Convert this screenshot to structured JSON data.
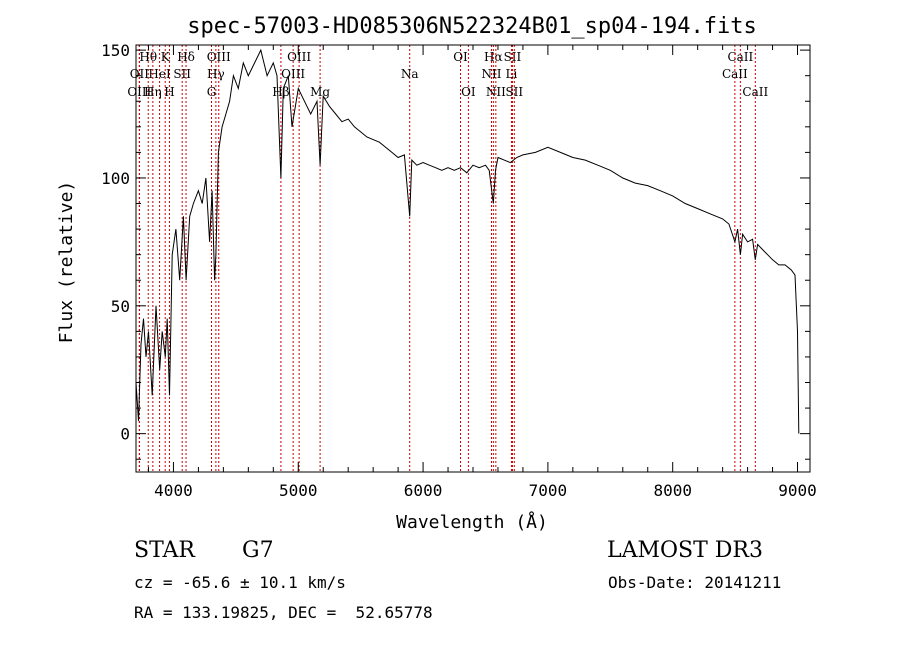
{
  "chart_data": {
    "type": "line",
    "title": "spec-57003-HD085306N522324B01_sp04-194.fits",
    "xlabel": "Wavelength (Å)",
    "ylabel": "Flux (relative)",
    "xlim": [
      3700,
      9100
    ],
    "ylim": [
      -15,
      152
    ],
    "x_ticks": [
      4000,
      5000,
      6000,
      7000,
      8000,
      9000
    ],
    "y_ticks": [
      0,
      50,
      100,
      150
    ],
    "grid": false,
    "series": [
      {
        "name": "spectrum",
        "x": [
          3700,
          3720,
          3740,
          3760,
          3780,
          3800,
          3830,
          3860,
          3890,
          3910,
          3935,
          3950,
          3968,
          3990,
          4020,
          4050,
          4080,
          4101,
          4130,
          4160,
          4200,
          4230,
          4260,
          4290,
          4310,
          4330,
          4340,
          4360,
          4390,
          4420,
          4450,
          4480,
          4520,
          4560,
          4600,
          4650,
          4700,
          4750,
          4800,
          4830,
          4861,
          4880,
          4920,
          4950,
          5000,
          5050,
          5100,
          5150,
          5175,
          5200,
          5250,
          5300,
          5350,
          5400,
          5450,
          5500,
          5550,
          5600,
          5650,
          5700,
          5750,
          5800,
          5850,
          5893,
          5910,
          5950,
          6000,
          6050,
          6100,
          6150,
          6200,
          6250,
          6300,
          6350,
          6400,
          6450,
          6500,
          6530,
          6563,
          6580,
          6600,
          6650,
          6700,
          6750,
          6800,
          6900,
          7000,
          7100,
          7200,
          7300,
          7400,
          7500,
          7600,
          7700,
          7800,
          7900,
          8000,
          8100,
          8200,
          8300,
          8400,
          8450,
          8498,
          8520,
          8542,
          8560,
          8600,
          8640,
          8662,
          8680,
          8720,
          8760,
          8800,
          8850,
          8900,
          8950,
          8980,
          9000,
          9010
        ],
        "values": [
          20,
          5,
          35,
          45,
          30,
          40,
          15,
          50,
          25,
          40,
          30,
          45,
          15,
          70,
          80,
          60,
          85,
          60,
          85,
          90,
          95,
          90,
          100,
          75,
          95,
          60,
          70,
          110,
          120,
          125,
          130,
          140,
          135,
          145,
          140,
          145,
          150,
          140,
          145,
          140,
          100,
          135,
          140,
          120,
          135,
          130,
          125,
          130,
          105,
          132,
          128,
          125,
          122,
          123,
          120,
          118,
          116,
          115,
          114,
          112,
          110,
          108,
          109,
          85,
          107,
          105,
          106,
          105,
          104,
          103,
          104,
          103,
          104,
          102,
          105,
          104,
          105,
          103,
          90,
          103,
          108,
          107,
          106,
          108,
          109,
          110,
          112,
          110,
          108,
          107,
          105,
          103,
          100,
          98,
          97,
          95,
          93,
          90,
          88,
          86,
          84,
          82,
          75,
          80,
          70,
          78,
          75,
          76,
          68,
          74,
          72,
          70,
          68,
          66,
          66,
          64,
          62,
          40,
          0
        ]
      }
    ],
    "line_markers": [
      {
        "label": "Hθ",
        "x": 3798,
        "row": 1
      },
      {
        "label": "OII",
        "x": 3727,
        "row": 2
      },
      {
        "label": "OIII",
        "x": 3727,
        "row": 3
      },
      {
        "label": "K",
        "x": 3934,
        "row": 1
      },
      {
        "label": "Hδ",
        "x": 4101,
        "row": 1
      },
      {
        "label": "HeI",
        "x": 3889,
        "row": 2
      },
      {
        "label": "SII",
        "x": 4070,
        "row": 2
      },
      {
        "label": "Hη",
        "x": 3835,
        "row": 3
      },
      {
        "label": "H",
        "x": 3968,
        "row": 3
      },
      {
        "label": "OIII",
        "x": 4363,
        "row": 1
      },
      {
        "label": "Hγ",
        "x": 4340,
        "row": 2
      },
      {
        "label": "G",
        "x": 4305,
        "row": 3
      },
      {
        "label": "OIII",
        "x": 5007,
        "row": 1
      },
      {
        "label": "OIII",
        "x": 4959,
        "row": 2
      },
      {
        "label": "Hβ",
        "x": 4861,
        "row": 3
      },
      {
        "label": "Mg",
        "x": 5175,
        "row": 3
      },
      {
        "label": "Na",
        "x": 5893,
        "row": 2
      },
      {
        "label": "OI",
        "x": 6300,
        "row": 1
      },
      {
        "label": "OI",
        "x": 6363,
        "row": 3
      },
      {
        "label": "Hα",
        "x": 6563,
        "row": 1
      },
      {
        "label": "SII",
        "x": 6716,
        "row": 1
      },
      {
        "label": "NII",
        "x": 6548,
        "row": 2
      },
      {
        "label": "Li",
        "x": 6708,
        "row": 2
      },
      {
        "label": "NII",
        "x": 6583,
        "row": 3
      },
      {
        "label": "SII",
        "x": 6731,
        "row": 3
      },
      {
        "label": "CaII",
        "x": 8542,
        "row": 1
      },
      {
        "label": "CaII",
        "x": 8498,
        "row": 2
      },
      {
        "label": "CaII",
        "x": 8662,
        "row": 3
      }
    ]
  },
  "footer": {
    "object_class": "STAR",
    "subclass": "G7",
    "survey": "LAMOST DR3",
    "redshift_line": "cz = -65.6 ± 10.1 km/s",
    "obs_date_line": "Obs-Date: 20141211",
    "coords_line": "RA = 133.19825, DEC =  52.65778"
  }
}
